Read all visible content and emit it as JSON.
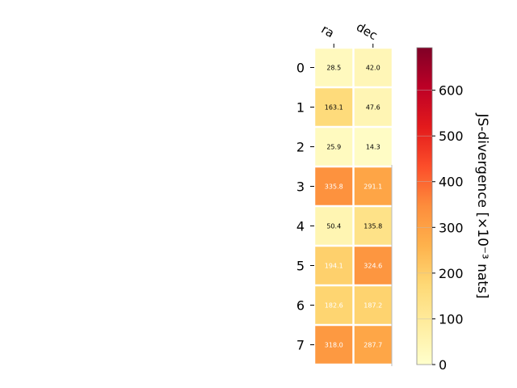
{
  "chart_data": {
    "type": "heatmap",
    "title": "",
    "columns": [
      "ra",
      "dec"
    ],
    "rows": [
      "0",
      "1",
      "2",
      "3",
      "4",
      "5",
      "6",
      "7"
    ],
    "values": [
      [
        28.5,
        42.0
      ],
      [
        163.1,
        47.6
      ],
      [
        25.9,
        14.3
      ],
      [
        335.8,
        291.1
      ],
      [
        50.4,
        135.8
      ],
      [
        194.1,
        324.6
      ],
      [
        182.6,
        187.2
      ],
      [
        318.0,
        287.7
      ]
    ],
    "value_labels": [
      [
        "28.5",
        "42.0"
      ],
      [
        "163.1",
        "47.6"
      ],
      [
        "25.9",
        "14.3"
      ],
      [
        "335.8",
        "291.1"
      ],
      [
        "50.4",
        "135.8"
      ],
      [
        "194.1",
        "324.6"
      ],
      [
        "182.6",
        "187.2"
      ],
      [
        "318.0",
        "287.7"
      ]
    ],
    "colorbar": {
      "label": "JS-divergence [×10⁻³ nats]",
      "range": [
        0,
        693
      ],
      "ticks": [
        0,
        100,
        200,
        300,
        400,
        500,
        600
      ],
      "tick_labels": [
        "0",
        "100",
        "200",
        "300",
        "400",
        "500",
        "600"
      ],
      "colormap": "YlOrRd",
      "colormap_stops": [
        "#ffffcc",
        "#ffeda0",
        "#fed976",
        "#feb24c",
        "#fd8d3c",
        "#fc4e2a",
        "#e31a1c",
        "#bd0026",
        "#800026"
      ]
    }
  }
}
